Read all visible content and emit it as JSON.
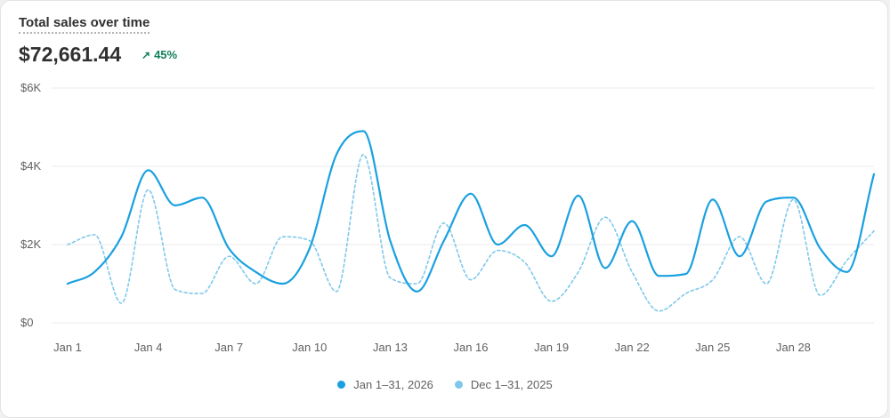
{
  "header": {
    "title": "Total sales over time",
    "total": "$72,661.44",
    "change_icon": "arrow-up-right-icon",
    "change": "45%"
  },
  "colors": {
    "current": "#1aa0e0",
    "previous": "#7ec8ea",
    "positive": "#12805c",
    "grid": "#ebebeb"
  },
  "legend": {
    "current": "Jan 1–31, 2026",
    "previous": "Dec 1–31, 2025"
  },
  "chart_data": {
    "type": "line",
    "title": "Total sales over time",
    "xlabel": "",
    "ylabel": "",
    "ylim": [
      0,
      6000
    ],
    "y_ticks": [
      0,
      2000,
      4000,
      6000
    ],
    "y_tick_labels": [
      "$0",
      "$2K",
      "$4K",
      "$6K"
    ],
    "categories": [
      "Jan 1",
      "Jan 2",
      "Jan 3",
      "Jan 4",
      "Jan 5",
      "Jan 6",
      "Jan 7",
      "Jan 8",
      "Jan 9",
      "Jan 10",
      "Jan 11",
      "Jan 12",
      "Jan 13",
      "Jan 14",
      "Jan 15",
      "Jan 16",
      "Jan 17",
      "Jan 18",
      "Jan 19",
      "Jan 20",
      "Jan 21",
      "Jan 22",
      "Jan 23",
      "Jan 24",
      "Jan 25",
      "Jan 26",
      "Jan 27",
      "Jan 28",
      "Jan 29",
      "Jan 30",
      "Jan 31"
    ],
    "x_tick_labels": [
      "Jan 1",
      "",
      "",
      "Jan 4",
      "",
      "",
      "Jan 7",
      "",
      "",
      "Jan 10",
      "",
      "",
      "Jan 13",
      "",
      "",
      "Jan 16",
      "",
      "",
      "Jan 19",
      "",
      "",
      "Jan 22",
      "",
      "",
      "Jan 25",
      "",
      "",
      "Jan 28",
      "",
      "",
      ""
    ],
    "grid": true,
    "legend_position": "bottom-center",
    "series": [
      {
        "name": "Jan 1–31, 2026",
        "style": "solid",
        "values": [
          1000,
          1300,
          2200,
          3900,
          3000,
          3200,
          1900,
          1300,
          1000,
          1900,
          4300,
          4900,
          2100,
          800,
          2100,
          3300,
          2000,
          2500,
          1700,
          3250,
          1400,
          2600,
          1200,
          1250,
          3150,
          1700,
          3100,
          3200,
          1900,
          1300,
          3800
        ]
      },
      {
        "name": "Dec 1–31, 2025",
        "style": "dashed",
        "values": [
          2000,
          2250,
          500,
          3400,
          850,
          750,
          1700,
          1000,
          2200,
          2100,
          800,
          4300,
          1150,
          1000,
          2550,
          1100,
          1850,
          1550,
          550,
          1300,
          2700,
          1300,
          300,
          750,
          1100,
          2200,
          1000,
          3150,
          700,
          1600,
          2350
        ]
      }
    ]
  }
}
